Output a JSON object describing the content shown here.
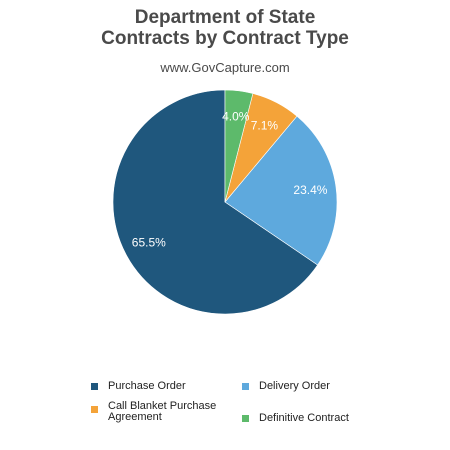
{
  "title_line1": "Department of State",
  "title_line2": "Contracts by Contract Type",
  "subtitle": "www.GovCapture.com",
  "chart_data": {
    "type": "pie",
    "title": "Department of State Contracts by Contract Type",
    "subtitle": "www.GovCapture.com",
    "legend_position": "bottom",
    "slices": [
      {
        "name": "Purchase Order",
        "value": 65.5,
        "label": "65.5%",
        "color": "#1f577d"
      },
      {
        "name": "Delivery Order",
        "value": 23.4,
        "label": "23.4%",
        "color": "#5ea9dd"
      },
      {
        "name": "Call Blanket Purchase Agreement",
        "value": 7.1,
        "label": "7.1%",
        "color": "#f4a339"
      },
      {
        "name": "Definitive Contract",
        "value": 4.0,
        "label": "4.0%",
        "color": "#5dba6b"
      }
    ]
  },
  "legend": [
    {
      "label_lines": [
        "Purchase Order"
      ],
      "color": "#1f577d"
    },
    {
      "label_lines": [
        "Delivery Order"
      ],
      "color": "#5ea9dd"
    },
    {
      "label_lines": [
        "Call Blanket Purchase",
        "Agreement"
      ],
      "color": "#f4a339"
    },
    {
      "label_lines": [
        "Definitive Contract"
      ],
      "color": "#5dba6b"
    }
  ]
}
